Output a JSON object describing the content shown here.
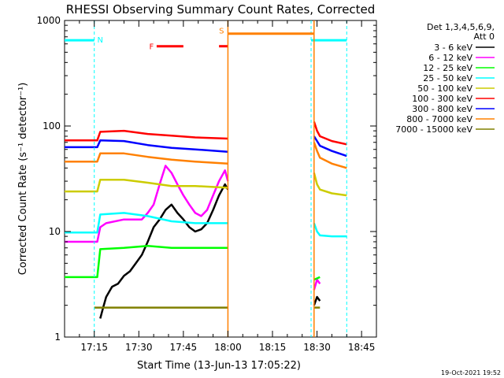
{
  "chart_data": {
    "type": "line",
    "title": "RHESSI Observing Summary Count Rates, Corrected",
    "xlabel": "Start Time (13-Jun-13 17:05:22)",
    "ylabel": "Corrected Count Rate (s⁻¹ detector⁻¹)",
    "y_scale": "log",
    "ylim": [
      1,
      1000
    ],
    "xlim": [
      0,
      105
    ],
    "x_tick_labels": [
      "17:15",
      "17:30",
      "17:45",
      "18:00",
      "18:15",
      "18:30",
      "18:45"
    ],
    "x_tick_minutes": [
      10,
      25,
      40,
      55,
      70,
      85,
      100
    ],
    "y_tick_labels": [
      "1",
      "10",
      "100",
      "1000"
    ],
    "y_tick_values": [
      1,
      10,
      100,
      1000
    ],
    "legend": {
      "header": [
        "Det 1,3,4,5,6,9,",
        "Att 0"
      ],
      "placement": "right"
    },
    "series": [
      {
        "name": "3 - 6 keV",
        "color": "#000000",
        "segments": [
          [
            [
              12,
              1.5
            ],
            [
              13,
              1.9
            ],
            [
              14,
              2.4
            ],
            [
              16,
              3.0
            ],
            [
              18,
              3.2
            ],
            [
              20,
              3.8
            ],
            [
              22,
              4.2
            ],
            [
              24,
              5.0
            ],
            [
              26,
              6.0
            ],
            [
              28,
              8.0
            ],
            [
              30,
              11
            ],
            [
              32,
              13
            ],
            [
              34,
              16
            ],
            [
              36,
              18
            ],
            [
              38,
              15
            ],
            [
              40,
              13
            ],
            [
              42,
              11
            ],
            [
              44,
              10
            ],
            [
              46,
              10.5
            ],
            [
              48,
              12
            ],
            [
              50,
              16
            ],
            [
              52,
              22
            ],
            [
              54,
              28
            ],
            [
              55,
              25
            ]
          ],
          [
            [
              84,
              2.0
            ],
            [
              85,
              2.4
            ],
            [
              86,
              2.2
            ]
          ]
        ]
      },
      {
        "name": "6 - 12 keV",
        "color": "#ff00ff",
        "segments": [
          [
            [
              0,
              8
            ],
            [
              11,
              8
            ],
            [
              12,
              11
            ],
            [
              14,
              12
            ],
            [
              20,
              13
            ],
            [
              26,
              13
            ],
            [
              28,
              15
            ],
            [
              30,
              18
            ],
            [
              32,
              28
            ],
            [
              34,
              42
            ],
            [
              36,
              36
            ],
            [
              38,
              28
            ],
            [
              40,
              22
            ],
            [
              42,
              18
            ],
            [
              44,
              15
            ],
            [
              46,
              14
            ],
            [
              48,
              16
            ],
            [
              50,
              22
            ],
            [
              52,
              30
            ],
            [
              54,
              38
            ],
            [
              55,
              30
            ]
          ],
          [
            [
              84,
              2.8
            ],
            [
              85,
              3.5
            ],
            [
              86,
              3.2
            ]
          ]
        ]
      },
      {
        "name": "12 - 25 keV",
        "color": "#00ff00",
        "segments": [
          [
            [
              0,
              3.7
            ],
            [
              11,
              3.7
            ],
            [
              12,
              6.8
            ],
            [
              20,
              7.0
            ],
            [
              28,
              7.3
            ],
            [
              36,
              7.0
            ],
            [
              44,
              7.0
            ],
            [
              55,
              7.0
            ]
          ],
          [
            [
              84,
              3.5
            ],
            [
              86,
              3.7
            ]
          ]
        ]
      },
      {
        "name": "25 - 50 keV",
        "color": "#00ffff",
        "segments": [
          [
            [
              0,
              9.8
            ],
            [
              11,
              9.8
            ],
            [
              12,
              14.5
            ],
            [
              20,
              15.0
            ],
            [
              28,
              14.0
            ],
            [
              36,
              12.5
            ],
            [
              44,
              12.0
            ],
            [
              55,
              12.0
            ]
          ],
          [
            [
              84,
              12
            ],
            [
              85,
              10
            ],
            [
              86,
              9.2
            ],
            [
              90,
              9.0
            ],
            [
              95,
              9.0
            ]
          ]
        ]
      },
      {
        "name": "50 - 100 keV",
        "color": "#cccc00",
        "segments": [
          [
            [
              0,
              24
            ],
            [
              11,
              24
            ],
            [
              12,
              31
            ],
            [
              20,
              31
            ],
            [
              28,
              29
            ],
            [
              36,
              27
            ],
            [
              44,
              27
            ],
            [
              55,
              26
            ]
          ],
          [
            [
              84,
              36
            ],
            [
              85,
              28
            ],
            [
              86,
              25
            ],
            [
              90,
              23
            ],
            [
              95,
              22
            ]
          ]
        ]
      },
      {
        "name": "100 - 300 keV",
        "color": "#ff0000",
        "segments": [
          [
            [
              0,
              73
            ],
            [
              11,
              73
            ],
            [
              12,
              88
            ],
            [
              20,
              90
            ],
            [
              28,
              84
            ],
            [
              36,
              81
            ],
            [
              44,
              78
            ],
            [
              55,
              76
            ]
          ],
          [
            [
              84,
              110
            ],
            [
              85,
              90
            ],
            [
              86,
              80
            ],
            [
              90,
              72
            ],
            [
              95,
              67
            ]
          ]
        ]
      },
      {
        "name": "300 - 800 keV",
        "color": "#0000ff",
        "segments": [
          [
            [
              0,
              63
            ],
            [
              11,
              63
            ],
            [
              12,
              73
            ],
            [
              20,
              72
            ],
            [
              28,
              66
            ],
            [
              36,
              62
            ],
            [
              44,
              60
            ],
            [
              55,
              57
            ]
          ],
          [
            [
              84,
              80
            ],
            [
              85,
              72
            ],
            [
              86,
              65
            ],
            [
              90,
              58
            ],
            [
              95,
              52
            ]
          ]
        ]
      },
      {
        "name": "800 - 7000 keV",
        "color": "#ff8000",
        "segments": [
          [
            [
              0,
              46
            ],
            [
              11,
              46
            ],
            [
              12,
              55
            ],
            [
              20,
              55
            ],
            [
              28,
              51
            ],
            [
              36,
              48
            ],
            [
              44,
              46
            ],
            [
              55,
              44
            ]
          ],
          [
            [
              84,
              70
            ],
            [
              85,
              58
            ],
            [
              86,
              50
            ],
            [
              90,
              44
            ],
            [
              95,
              40
            ]
          ]
        ]
      },
      {
        "name": "7000 - 15000 keV",
        "color": "#808000",
        "segments": [
          [
            [
              10,
              1.9
            ],
            [
              12,
              1.9
            ],
            [
              20,
              1.9
            ],
            [
              28,
              1.9
            ],
            [
              36,
              1.9
            ],
            [
              44,
              1.9
            ],
            [
              55,
              1.9
            ]
          ],
          [
            [
              84,
              1.9
            ],
            [
              86,
              1.9
            ]
          ]
        ]
      }
    ],
    "annotations": {
      "N": {
        "label": "N",
        "color": "#00ffff",
        "level": 650,
        "bars": [
          [
            0,
            10
          ],
          [
            83,
            95
          ]
        ],
        "dashed_lines": [
          10,
          83,
          95
        ]
      },
      "F": {
        "label": "F",
        "color": "#ff0000",
        "level": 570,
        "bars": [
          [
            31,
            40
          ],
          [
            52,
            55
          ]
        ]
      },
      "S": {
        "label": "S",
        "color": "#ff8000",
        "level": 750,
        "bars": [
          [
            55,
            84
          ]
        ],
        "vertical_lines": [
          55,
          84
        ]
      }
    },
    "footer_date": "19-Oct-2021 19:52"
  }
}
